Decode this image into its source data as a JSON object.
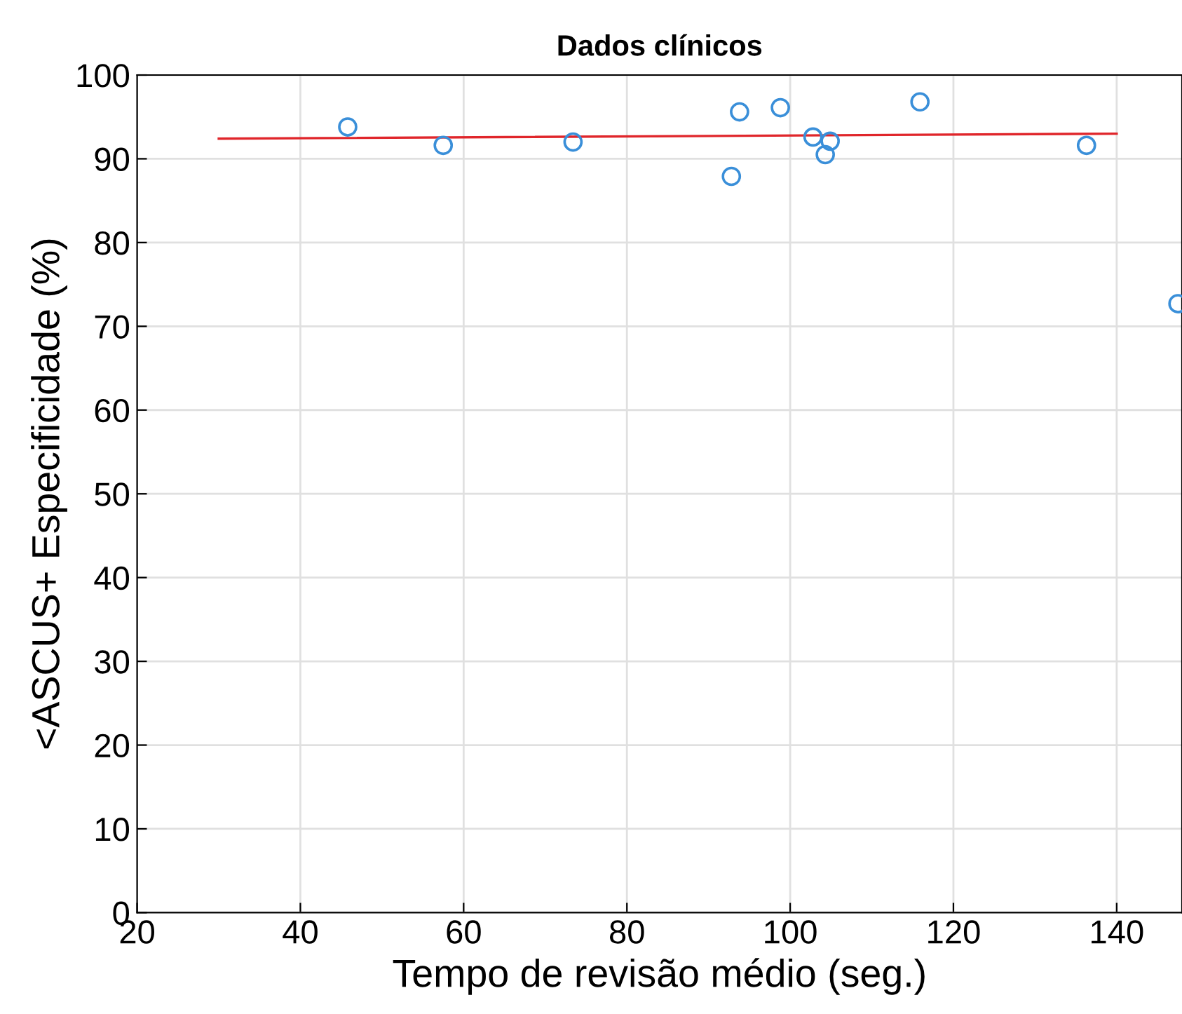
{
  "chart_data": {
    "type": "scatter",
    "title": "Dados clínicos",
    "xlabel": "Tempo de revisão médio (seg.)",
    "ylabel": "<ASCUS+ Especificidade (%)",
    "xlim": [
      20,
      148
    ],
    "xticks": [
      20,
      40,
      60,
      80,
      100,
      120,
      140
    ],
    "ylim": [
      0,
      100
    ],
    "yticks": [
      0,
      10,
      20,
      30,
      40,
      50,
      60,
      70,
      80,
      90,
      100
    ],
    "grid": true,
    "series": [
      {
        "marker": "circle",
        "color": "#3a8fd9",
        "x": [
          45.8,
          57.5,
          73.4,
          92.8,
          93.8,
          98.8,
          102.8,
          104.9,
          104.3,
          115.9,
          136.3,
          147.5
        ],
        "values": [
          93.8,
          91.6,
          92.0,
          87.9,
          95.6,
          96.1,
          92.6,
          92.1,
          90.5,
          96.8,
          91.6,
          72.7
        ]
      },
      {
        "type": "line",
        "marker": "none",
        "color": "#e0262b",
        "x": [
          30,
          140
        ],
        "values": [
          92.4,
          93.0
        ]
      }
    ]
  }
}
